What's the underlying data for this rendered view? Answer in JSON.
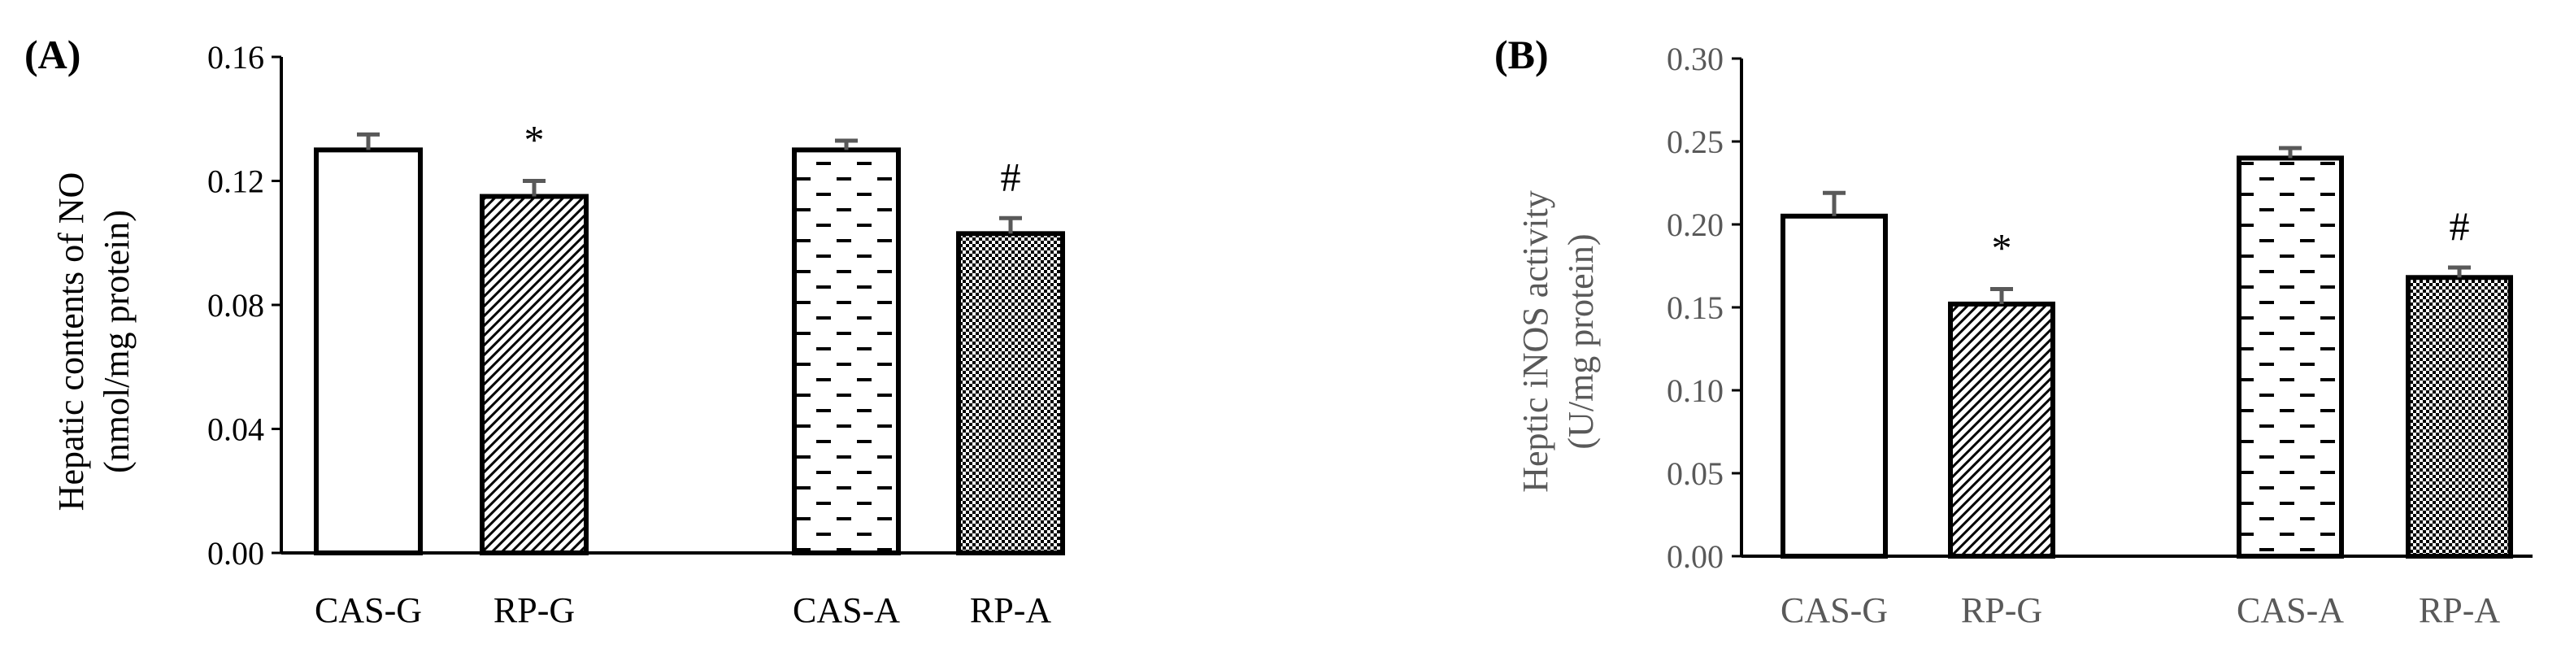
{
  "chart_data": [
    {
      "type": "bar",
      "panel_label": "(A)",
      "categories": [
        "CAS-G",
        "RP-G",
        "CAS-A",
        "RP-A"
      ],
      "values": [
        0.13,
        0.115,
        0.13,
        0.103
      ],
      "errors": [
        0.005,
        0.005,
        0.003,
        0.005
      ],
      "annotations": [
        "",
        "*",
        "",
        "#"
      ],
      "patterns": [
        "white",
        "diagonal",
        "dash",
        "checker"
      ],
      "ylabel_line1": "Hepatic contents of NO",
      "ylabel_line2": "(nmol/mg protein)",
      "ylim": [
        0,
        0.16
      ],
      "yticks": [
        "0.00",
        "0.04",
        "0.08",
        "0.12",
        "0.16"
      ],
      "grid": false,
      "text_color": "#000000"
    },
    {
      "type": "bar",
      "panel_label": "(B)",
      "categories": [
        "CAS-G",
        "RP-G",
        "CAS-A",
        "RP-A"
      ],
      "values": [
        0.205,
        0.152,
        0.24,
        0.168
      ],
      "errors": [
        0.014,
        0.009,
        0.006,
        0.006
      ],
      "annotations": [
        "",
        "*",
        "",
        "#"
      ],
      "patterns": [
        "white",
        "diagonal",
        "dash",
        "checker"
      ],
      "ylabel_line1": "Heptic iNOS activity",
      "ylabel_line2": "(U/mg protein)",
      "ylim": [
        0,
        0.3
      ],
      "yticks": [
        "0.00",
        "0.05",
        "0.10",
        "0.15",
        "0.20",
        "0.25",
        "0.30"
      ],
      "grid": false,
      "text_color": "#595959"
    }
  ]
}
